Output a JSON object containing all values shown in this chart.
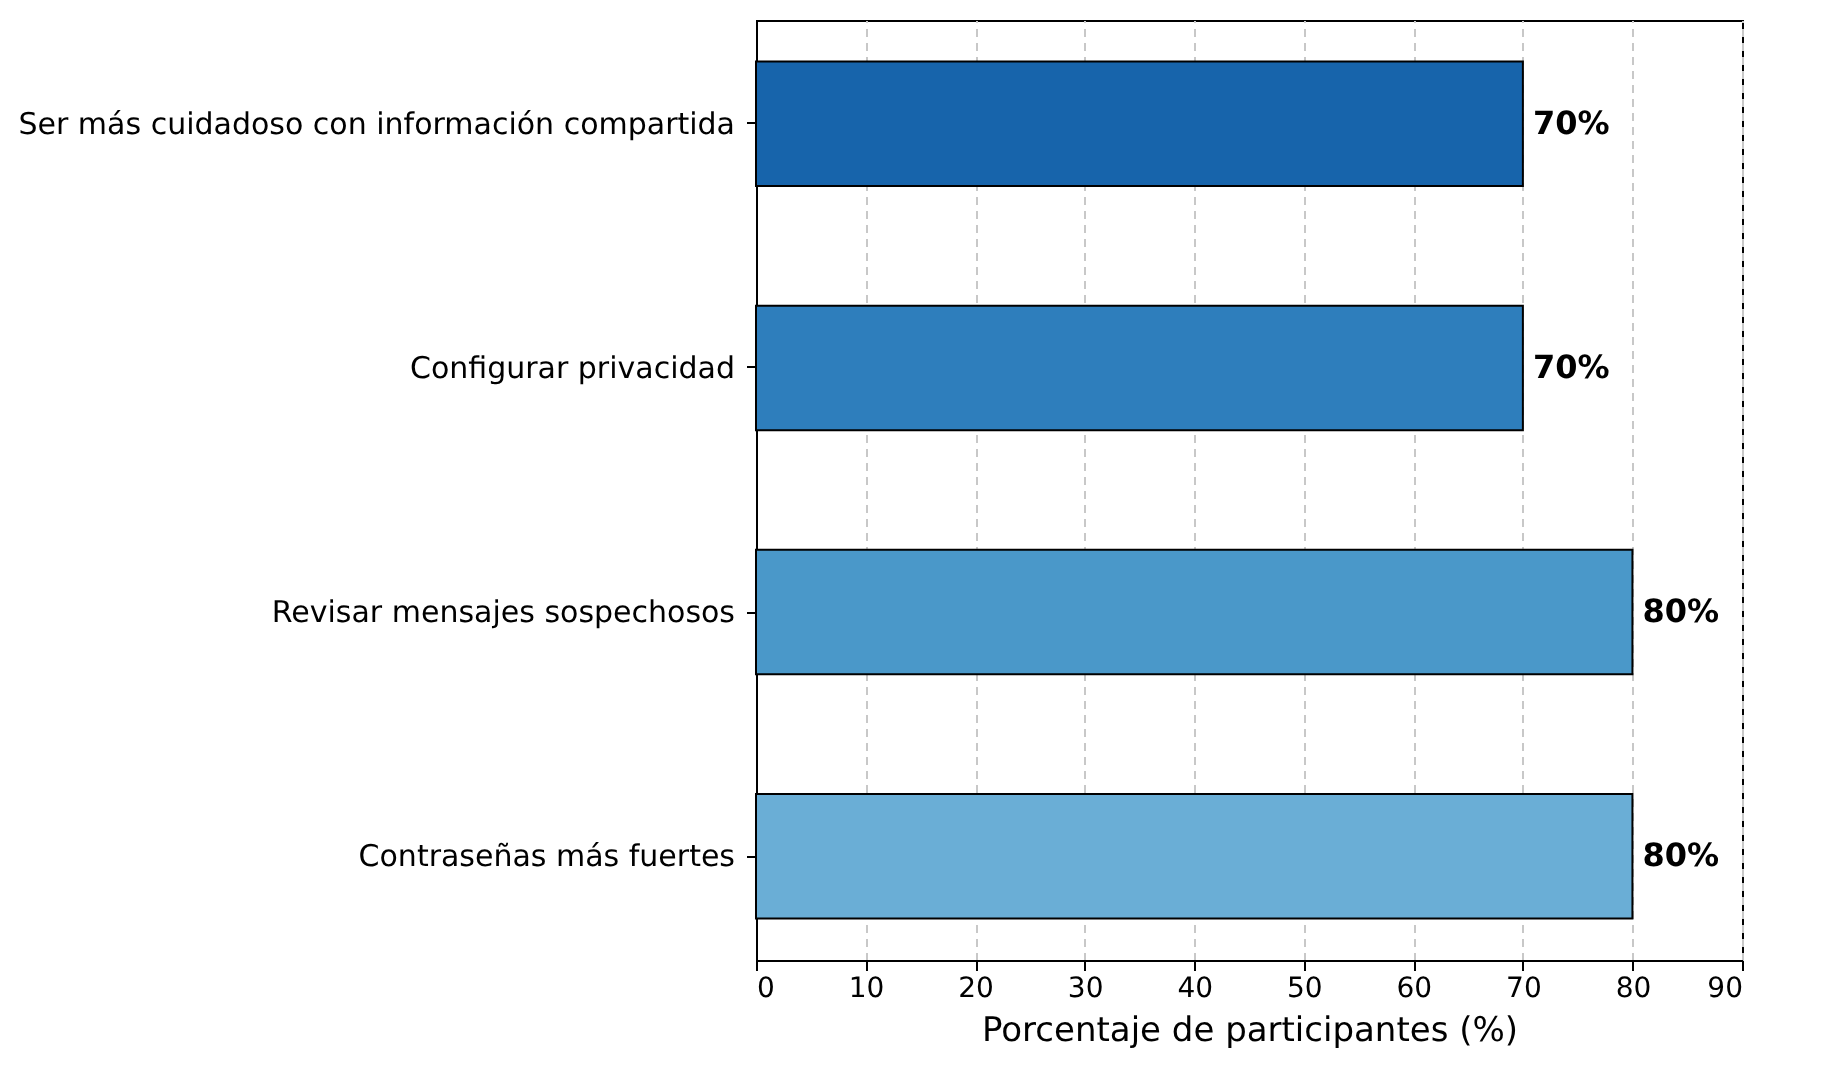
{
  "chart_data": {
    "type": "bar",
    "orientation": "horizontal",
    "xlabel": "Porcentaje de participantes (%)",
    "categories": [
      "Ser más cuidadoso con información compartida",
      "Configurar privacidad",
      "Revisar mensajes sospechosos",
      "Contraseñas más fuertes"
    ],
    "values": [
      70,
      70,
      80,
      80
    ],
    "colors": [
      "#1764ab",
      "#2e7ebc",
      "#4a98c9",
      "#6aaed6"
    ],
    "value_labels": [
      "70%",
      "70%",
      "80%",
      "80%"
    ],
    "xlim": [
      0,
      90
    ],
    "xticks": [
      0,
      10,
      20,
      30,
      40,
      50,
      60,
      70,
      80,
      90
    ],
    "grid": "x"
  }
}
